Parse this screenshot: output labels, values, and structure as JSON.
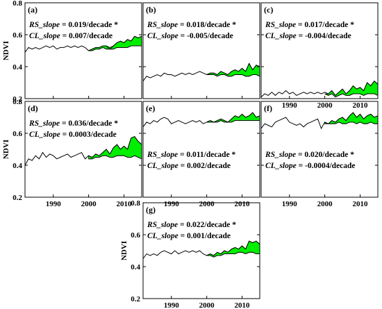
{
  "figure": {
    "ylabel": "NDVI",
    "x_ticks": [
      1990,
      2000,
      2010
    ],
    "y_ticks": [
      "0.2",
      "0.4",
      "0.6",
      "0.8"
    ],
    "xlim": [
      1982,
      2015
    ],
    "ylim": [
      0.2,
      0.8
    ],
    "colors": {
      "line": "#000000",
      "fill": "#00ee00",
      "frame": "#000000"
    }
  },
  "chart_data": [
    {
      "type": "line",
      "panel": "(a)",
      "ylabel": "NDVI",
      "rs_label": "RS_slope",
      "rs_value": " = 0.019/decade *",
      "cl_label": "CL_slope",
      "cl_value": " = 0.007/decade",
      "x": [
        1982,
        1983,
        1984,
        1985,
        1986,
        1987,
        1988,
        1989,
        1990,
        1991,
        1992,
        1993,
        1994,
        1995,
        1996,
        1997,
        1998,
        1999,
        2000,
        2001,
        2002,
        2003,
        2004,
        2005,
        2006,
        2007,
        2008,
        2009,
        2010,
        2011,
        2012,
        2013,
        2014,
        2015
      ],
      "observed": [
        0.49,
        0.52,
        0.51,
        0.52,
        0.51,
        0.52,
        0.53,
        0.52,
        0.53,
        0.51,
        0.52,
        0.52,
        0.53,
        0.52,
        0.53,
        0.52,
        0.53,
        0.52,
        0.5,
        0.51,
        0.52,
        0.52,
        0.53,
        0.53,
        0.51,
        0.53,
        0.55,
        0.56,
        0.55,
        0.57,
        0.56,
        0.59,
        0.58,
        0.59
      ],
      "fill_x": [
        2000,
        2001,
        2002,
        2003,
        2004,
        2005,
        2006,
        2007,
        2008,
        2009,
        2010,
        2011,
        2012,
        2013,
        2014,
        2015
      ],
      "fill_upper": [
        0.5,
        0.51,
        0.52,
        0.52,
        0.53,
        0.53,
        0.52,
        0.53,
        0.55,
        0.56,
        0.55,
        0.57,
        0.56,
        0.59,
        0.58,
        0.59
      ],
      "fill_lower": [
        0.5,
        0.5,
        0.51,
        0.51,
        0.52,
        0.51,
        0.51,
        0.51,
        0.52,
        0.52,
        0.52,
        0.52,
        0.53,
        0.53,
        0.53,
        0.53
      ]
    },
    {
      "type": "line",
      "panel": "(b)",
      "ylabel": "",
      "rs_label": "RS_slope",
      "rs_value": " = 0.018/decade *",
      "cl_label": "CL_slope",
      "cl_value": " = -0.005/decade",
      "x": [
        1982,
        1983,
        1984,
        1985,
        1986,
        1987,
        1988,
        1989,
        1990,
        1991,
        1992,
        1993,
        1994,
        1995,
        1996,
        1997,
        1998,
        1999,
        2000,
        2001,
        2002,
        2003,
        2004,
        2005,
        2006,
        2007,
        2008,
        2009,
        2010,
        2011,
        2012,
        2013,
        2014,
        2015
      ],
      "observed": [
        0.31,
        0.34,
        0.33,
        0.34,
        0.35,
        0.34,
        0.36,
        0.35,
        0.35,
        0.34,
        0.35,
        0.36,
        0.35,
        0.36,
        0.35,
        0.36,
        0.37,
        0.36,
        0.35,
        0.36,
        0.36,
        0.35,
        0.37,
        0.36,
        0.35,
        0.37,
        0.38,
        0.37,
        0.39,
        0.37,
        0.42,
        0.38,
        0.41,
        0.4
      ],
      "fill_x": [
        2000,
        2001,
        2002,
        2003,
        2004,
        2005,
        2006,
        2007,
        2008,
        2009,
        2010,
        2011,
        2012,
        2013,
        2014,
        2015
      ],
      "fill_upper": [
        0.35,
        0.36,
        0.36,
        0.35,
        0.37,
        0.36,
        0.35,
        0.37,
        0.38,
        0.37,
        0.39,
        0.37,
        0.42,
        0.38,
        0.41,
        0.4
      ],
      "fill_lower": [
        0.35,
        0.35,
        0.35,
        0.34,
        0.35,
        0.35,
        0.34,
        0.34,
        0.35,
        0.35,
        0.35,
        0.34,
        0.34,
        0.35,
        0.35,
        0.34
      ]
    },
    {
      "type": "line",
      "panel": "(c)",
      "ylabel": "",
      "rs_label": "RS_slope",
      "rs_value": " = 0.017/decade *",
      "cl_label": "CL_slope",
      "cl_value": " = -0.004/decade",
      "x": [
        1982,
        1983,
        1984,
        1985,
        1986,
        1987,
        1988,
        1989,
        1990,
        1991,
        1992,
        1993,
        1994,
        1995,
        1996,
        1997,
        1998,
        1999,
        2000,
        2001,
        2002,
        2003,
        2004,
        2005,
        2006,
        2007,
        2008,
        2009,
        2010,
        2011,
        2012,
        2013,
        2014,
        2015
      ],
      "observed": [
        0.21,
        0.23,
        0.22,
        0.24,
        0.22,
        0.24,
        0.23,
        0.25,
        0.23,
        0.24,
        0.22,
        0.23,
        0.24,
        0.23,
        0.24,
        0.23,
        0.24,
        0.23,
        0.24,
        0.23,
        0.25,
        0.22,
        0.24,
        0.26,
        0.23,
        0.25,
        0.28,
        0.26,
        0.27,
        0.25,
        0.3,
        0.28,
        0.31,
        0.29
      ],
      "fill_x": [
        2000,
        2001,
        2002,
        2003,
        2004,
        2005,
        2006,
        2007,
        2008,
        2009,
        2010,
        2011,
        2012,
        2013,
        2014,
        2015
      ],
      "fill_upper": [
        0.23,
        0.23,
        0.25,
        0.22,
        0.24,
        0.26,
        0.23,
        0.25,
        0.28,
        0.26,
        0.27,
        0.25,
        0.3,
        0.28,
        0.31,
        0.29
      ],
      "fill_lower": [
        0.23,
        0.22,
        0.23,
        0.21,
        0.22,
        0.23,
        0.22,
        0.22,
        0.23,
        0.23,
        0.23,
        0.22,
        0.23,
        0.23,
        0.23,
        0.22
      ]
    },
    {
      "type": "line",
      "panel": "(d)",
      "ylabel": "NDVI",
      "rs_label": "RS_slope",
      "rs_value": " = 0.036/decade *",
      "cl_label": "CL_slope",
      "cl_value": " = 0.0003/decade",
      "x": [
        1982,
        1983,
        1984,
        1985,
        1986,
        1987,
        1988,
        1989,
        1990,
        1991,
        1992,
        1993,
        1994,
        1995,
        1996,
        1997,
        1998,
        1999,
        2000,
        2001,
        2002,
        2003,
        2004,
        2005,
        2006,
        2007,
        2008,
        2009,
        2010,
        2011,
        2012,
        2013,
        2014,
        2015
      ],
      "observed": [
        0.4,
        0.44,
        0.43,
        0.46,
        0.44,
        0.48,
        0.45,
        0.47,
        0.46,
        0.44,
        0.45,
        0.46,
        0.47,
        0.45,
        0.46,
        0.47,
        0.48,
        0.44,
        0.46,
        0.45,
        0.47,
        0.46,
        0.48,
        0.5,
        0.47,
        0.51,
        0.53,
        0.5,
        0.52,
        0.5,
        0.57,
        0.58,
        0.55,
        0.53
      ],
      "fill_x": [
        2000,
        2001,
        2002,
        2003,
        2004,
        2005,
        2006,
        2007,
        2008,
        2009,
        2010,
        2011,
        2012,
        2013,
        2014,
        2015
      ],
      "fill_upper": [
        0.46,
        0.45,
        0.47,
        0.46,
        0.48,
        0.5,
        0.47,
        0.51,
        0.53,
        0.5,
        0.52,
        0.5,
        0.57,
        0.58,
        0.55,
        0.53
      ],
      "fill_lower": [
        0.44,
        0.44,
        0.45,
        0.45,
        0.46,
        0.46,
        0.45,
        0.45,
        0.46,
        0.46,
        0.46,
        0.45,
        0.45,
        0.46,
        0.45,
        0.44
      ]
    },
    {
      "type": "line",
      "panel": "(e)",
      "ylabel": "",
      "rs_label": "RS_slope",
      "rs_value": " = 0.011/decade *",
      "cl_label": "CL_slope",
      "cl_value": " = 0.002/decade",
      "x": [
        1982,
        1983,
        1984,
        1985,
        1986,
        1987,
        1988,
        1989,
        1990,
        1991,
        1992,
        1993,
        1994,
        1995,
        1996,
        1997,
        1998,
        1999,
        2000,
        2001,
        2002,
        2003,
        2004,
        2005,
        2006,
        2007,
        2008,
        2009,
        2010,
        2011,
        2012,
        2013,
        2014,
        2015
      ],
      "observed": [
        0.64,
        0.67,
        0.66,
        0.68,
        0.67,
        0.69,
        0.7,
        0.69,
        0.66,
        0.67,
        0.68,
        0.67,
        0.66,
        0.67,
        0.68,
        0.67,
        0.68,
        0.66,
        0.67,
        0.68,
        0.67,
        0.68,
        0.69,
        0.68,
        0.67,
        0.69,
        0.71,
        0.7,
        0.72,
        0.7,
        0.71,
        0.73,
        0.7,
        0.71
      ],
      "fill_x": [
        2000,
        2001,
        2002,
        2003,
        2004,
        2005,
        2006,
        2007,
        2008,
        2009,
        2010,
        2011,
        2012,
        2013,
        2014,
        2015
      ],
      "fill_upper": [
        0.67,
        0.68,
        0.67,
        0.68,
        0.69,
        0.68,
        0.67,
        0.69,
        0.71,
        0.7,
        0.72,
        0.7,
        0.71,
        0.73,
        0.7,
        0.71
      ],
      "fill_lower": [
        0.67,
        0.67,
        0.67,
        0.67,
        0.68,
        0.67,
        0.67,
        0.67,
        0.68,
        0.68,
        0.68,
        0.68,
        0.68,
        0.68,
        0.68,
        0.68
      ]
    },
    {
      "type": "line",
      "panel": "(f)",
      "ylabel": "",
      "rs_label": "RS_slope",
      "rs_value": " = 0.020/decade *",
      "cl_label": "CL_slope",
      "cl_value": " = -0.0004/decade",
      "x": [
        1982,
        1983,
        1984,
        1985,
        1986,
        1987,
        1988,
        1989,
        1990,
        1991,
        1992,
        1993,
        1994,
        1995,
        1996,
        1997,
        1998,
        1999,
        2000,
        2001,
        2002,
        2003,
        2004,
        2005,
        2006,
        2007,
        2008,
        2009,
        2010,
        2011,
        2012,
        2013,
        2014,
        2015
      ],
      "observed": [
        0.63,
        0.66,
        0.65,
        0.64,
        0.67,
        0.68,
        0.69,
        0.7,
        0.67,
        0.66,
        0.65,
        0.66,
        0.64,
        0.66,
        0.67,
        0.68,
        0.69,
        0.63,
        0.67,
        0.66,
        0.68,
        0.67,
        0.69,
        0.7,
        0.68,
        0.71,
        0.73,
        0.7,
        0.72,
        0.69,
        0.71,
        0.72,
        0.7,
        0.71
      ],
      "fill_x": [
        2000,
        2001,
        2002,
        2003,
        2004,
        2005,
        2006,
        2007,
        2008,
        2009,
        2010,
        2011,
        2012,
        2013,
        2014,
        2015
      ],
      "fill_upper": [
        0.67,
        0.66,
        0.68,
        0.67,
        0.69,
        0.7,
        0.68,
        0.71,
        0.73,
        0.7,
        0.72,
        0.69,
        0.71,
        0.72,
        0.7,
        0.71
      ],
      "fill_lower": [
        0.66,
        0.66,
        0.66,
        0.66,
        0.67,
        0.66,
        0.66,
        0.67,
        0.67,
        0.66,
        0.67,
        0.66,
        0.66,
        0.67,
        0.66,
        0.66
      ]
    },
    {
      "type": "line",
      "panel": "(g)",
      "ylabel": "NDVI",
      "rs_label": "RS_slope",
      "rs_value": " = 0.022/decade *",
      "cl_label": "CL_slope",
      "cl_value": " = 0.001/decade",
      "x": [
        1982,
        1983,
        1984,
        1985,
        1986,
        1987,
        1988,
        1989,
        1990,
        1991,
        1992,
        1993,
        1994,
        1995,
        1996,
        1997,
        1998,
        1999,
        2000,
        2001,
        2002,
        2003,
        2004,
        2005,
        2006,
        2007,
        2008,
        2009,
        2010,
        2011,
        2012,
        2013,
        2014,
        2015
      ],
      "observed": [
        0.45,
        0.48,
        0.47,
        0.48,
        0.47,
        0.49,
        0.5,
        0.49,
        0.48,
        0.5,
        0.48,
        0.49,
        0.5,
        0.49,
        0.5,
        0.49,
        0.5,
        0.48,
        0.47,
        0.48,
        0.47,
        0.49,
        0.48,
        0.5,
        0.49,
        0.51,
        0.52,
        0.51,
        0.53,
        0.51,
        0.56,
        0.55,
        0.56,
        0.54
      ],
      "fill_x": [
        2000,
        2001,
        2002,
        2003,
        2004,
        2005,
        2006,
        2007,
        2008,
        2009,
        2010,
        2011,
        2012,
        2013,
        2014,
        2015
      ],
      "fill_upper": [
        0.47,
        0.48,
        0.47,
        0.49,
        0.48,
        0.5,
        0.49,
        0.51,
        0.52,
        0.51,
        0.53,
        0.51,
        0.56,
        0.55,
        0.56,
        0.54
      ],
      "fill_lower": [
        0.47,
        0.47,
        0.46,
        0.47,
        0.47,
        0.48,
        0.48,
        0.48,
        0.48,
        0.49,
        0.49,
        0.48,
        0.49,
        0.49,
        0.48,
        0.48
      ]
    }
  ]
}
